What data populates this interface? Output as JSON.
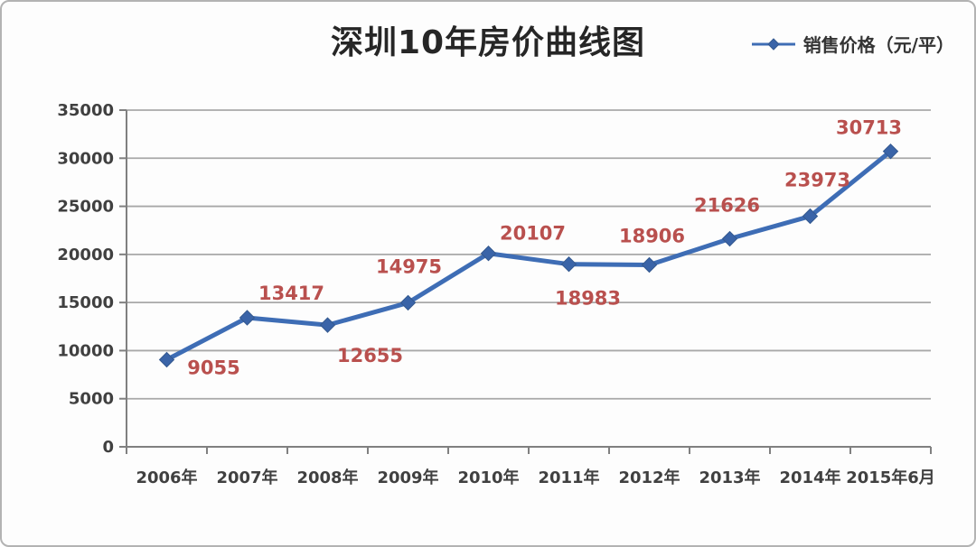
{
  "window": {
    "background": "#fdfdfd",
    "border_color": "#b3b3b3"
  },
  "header": {
    "title": "深圳10年房价曲线图",
    "legend": {
      "label": "销售价格（元/平）",
      "marker_shape": "line-with-diamond",
      "marker_color": "#3e6db5"
    }
  },
  "chart_data": {
    "type": "line",
    "title": "深圳10年房价曲线图",
    "categories": [
      "2006年",
      "2007年",
      "2008年",
      "2009年",
      "2010年",
      "2011年",
      "2012年",
      "2013年",
      "2014年",
      "2015年6月"
    ],
    "series": [
      {
        "name": "销售价格（元/平）",
        "values": [
          9055,
          13417,
          12655,
          14975,
          20107,
          18983,
          18906,
          21626,
          23973,
          30713
        ]
      }
    ],
    "xlabel": "",
    "ylabel": "",
    "ylim": [
      0,
      35000
    ],
    "yticks": [
      0,
      5000,
      10000,
      15000,
      20000,
      25000,
      30000,
      35000
    ],
    "grid": "horizontal",
    "legend_position": "top-right",
    "data_labels_shown": true,
    "colors": {
      "line": "#3e6db5",
      "marker": "#3a64a8",
      "marker_edge": "#34598f",
      "data_label": "#b9504e",
      "gridline": "#a8a8a8",
      "axis": "#808080",
      "tick_text": "#404040",
      "title_text": "#262626"
    }
  }
}
